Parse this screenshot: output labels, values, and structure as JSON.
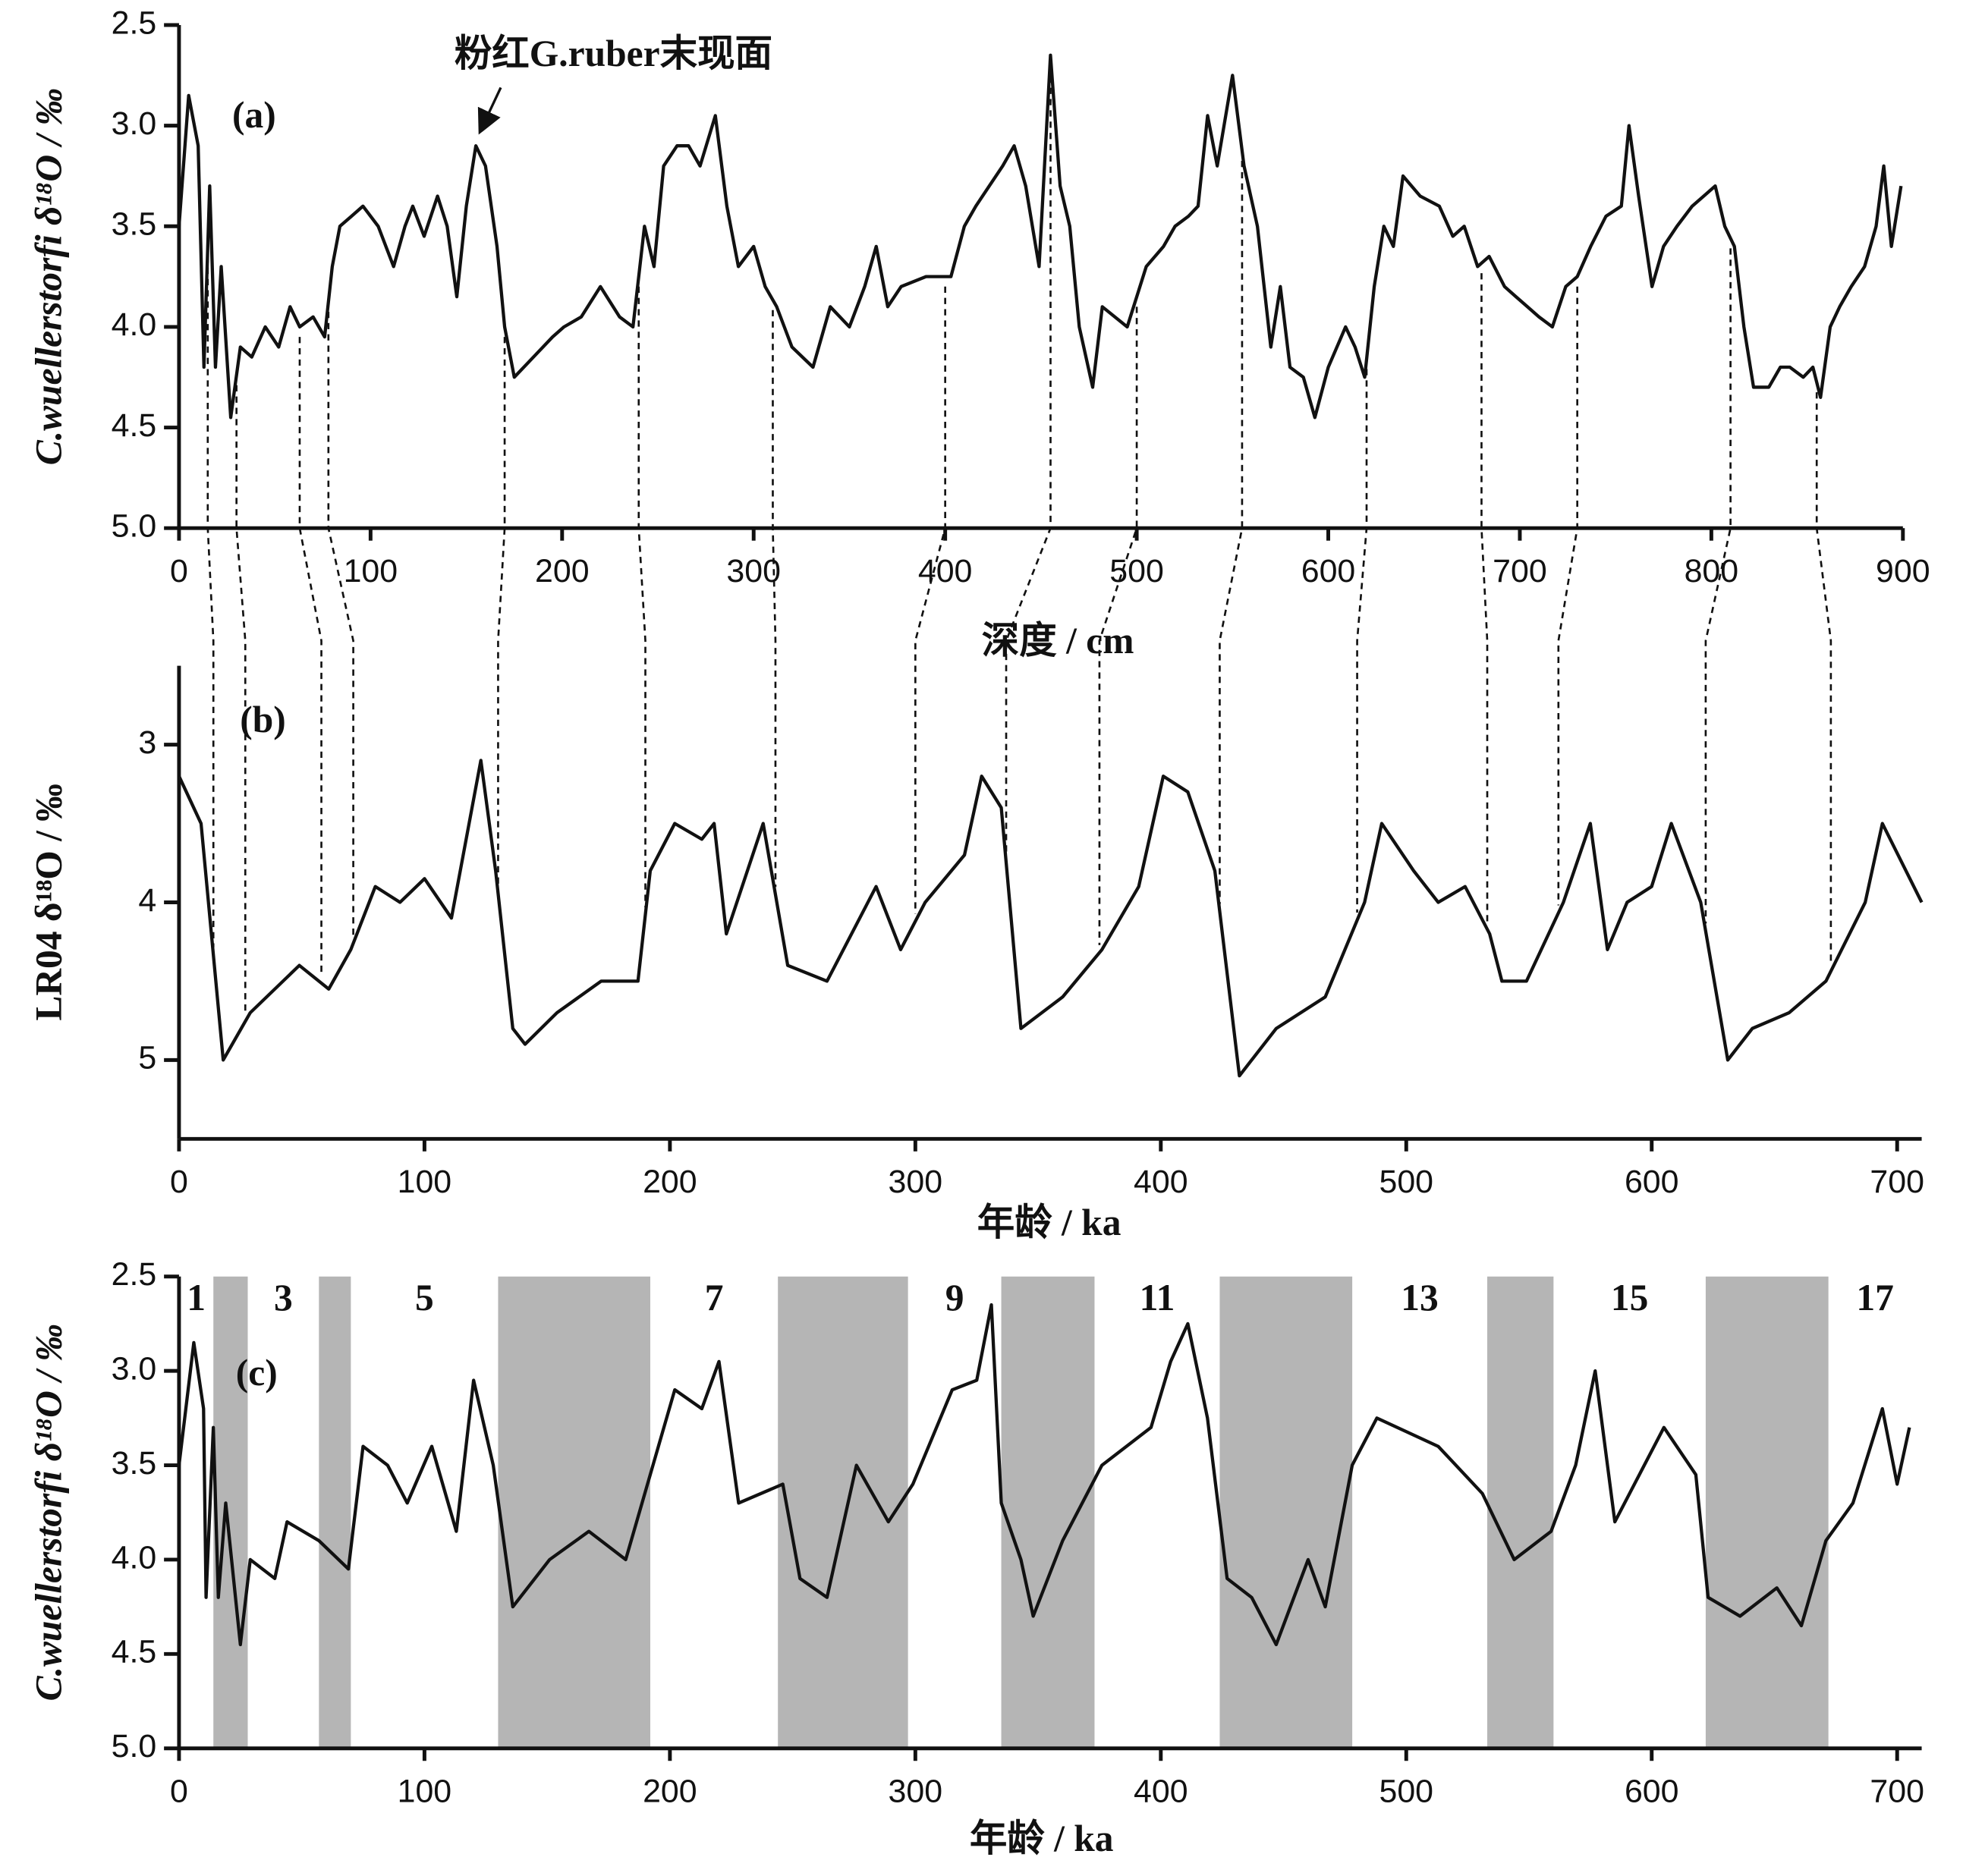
{
  "chart_data": [
    {
      "type": "line",
      "panel_label": "(a)",
      "annotation": "粉红G.ruber末现面",
      "x_label": "深度 / cm",
      "y_label": "C.wuellerstorfi δ¹⁸O / ‰",
      "y_inverted": true,
      "color": "#111111",
      "xlim": [
        0,
        900
      ],
      "xticks": [
        0,
        100,
        200,
        300,
        400,
        500,
        600,
        700,
        800,
        900
      ],
      "ylim": [
        2.5,
        5.0
      ],
      "yticks": [
        2.5,
        {
          "value": 3,
          "label": "3.0"
        },
        3.5,
        {
          "value": 4,
          "label": "4.0"
        },
        4.5,
        {
          "value": 5,
          "label": "5.0"
        }
      ],
      "x": [
        0,
        5,
        10,
        13,
        16,
        19,
        22,
        27,
        32,
        38,
        45,
        52,
        58,
        63,
        70,
        76,
        80,
        84,
        90,
        96,
        104,
        112,
        118,
        122,
        128,
        135,
        140,
        145,
        150,
        155,
        160,
        166,
        170,
        175,
        185,
        195,
        201,
        210,
        220,
        230,
        237,
        243,
        248,
        253,
        260,
        266,
        272,
        280,
        286,
        292,
        300,
        306,
        312,
        320,
        331,
        340,
        350,
        358,
        364,
        370,
        377,
        390,
        403,
        410,
        416,
        423,
        430,
        436,
        442,
        449,
        455,
        460,
        465,
        470,
        477,
        482,
        495,
        505,
        514,
        520,
        527,
        532,
        537,
        542,
        550,
        556,
        563,
        570,
        575,
        580,
        587,
        593,
        600,
        609,
        614,
        619,
        624,
        629,
        634,
        639,
        648,
        658,
        665,
        671,
        678,
        684,
        692,
        698,
        704,
        710,
        717,
        724,
        730,
        737,
        745,
        753,
        757,
        762,
        769,
        775,
        782,
        790,
        796,
        802,
        807,
        812,
        817,
        822,
        830,
        836,
        841,
        848,
        853,
        857,
        862,
        867,
        873,
        880,
        886,
        890,
        894,
        899
      ],
      "values": [
        3.5,
        2.85,
        3.1,
        4.2,
        3.3,
        4.2,
        3.7,
        4.45,
        4.1,
        4.15,
        4.0,
        4.1,
        3.9,
        4.0,
        3.95,
        4.05,
        3.7,
        3.5,
        3.45,
        3.4,
        3.5,
        3.7,
        3.5,
        3.4,
        3.55,
        3.35,
        3.5,
        3.85,
        3.4,
        3.1,
        3.2,
        3.6,
        4.0,
        4.25,
        4.15,
        4.05,
        4.0,
        3.95,
        3.8,
        3.95,
        4.0,
        3.5,
        3.7,
        3.2,
        3.1,
        3.1,
        3.2,
        2.95,
        3.4,
        3.7,
        3.6,
        3.8,
        3.9,
        4.1,
        4.2,
        3.9,
        4.0,
        3.8,
        3.6,
        3.9,
        3.8,
        3.75,
        3.75,
        3.5,
        3.4,
        3.3,
        3.2,
        3.1,
        3.3,
        3.7,
        2.65,
        3.3,
        3.5,
        4.0,
        4.3,
        3.9,
        4.0,
        3.7,
        3.6,
        3.5,
        3.45,
        3.4,
        2.95,
        3.2,
        2.75,
        3.2,
        3.5,
        4.1,
        3.8,
        4.2,
        4.25,
        4.45,
        4.2,
        4.0,
        4.1,
        4.25,
        3.8,
        3.5,
        3.6,
        3.25,
        3.35,
        3.4,
        3.55,
        3.5,
        3.7,
        3.65,
        3.8,
        3.85,
        3.9,
        3.95,
        4.0,
        3.8,
        3.75,
        3.6,
        3.45,
        3.4,
        3.0,
        3.35,
        3.8,
        3.6,
        3.5,
        3.4,
        3.35,
        3.3,
        3.5,
        3.6,
        4.0,
        4.3,
        4.3,
        4.2,
        4.2,
        4.25,
        4.2,
        4.35,
        4.0,
        3.9,
        3.8,
        3.7,
        3.5,
        3.2,
        3.6,
        3.3
      ]
    },
    {
      "type": "line",
      "panel_label": "(b)",
      "x_label": "年龄 / ka",
      "y_label": "LR04 δ¹⁸O / ‰",
      "y_inverted": true,
      "color": "#111111",
      "xlim": [
        0,
        710
      ],
      "xticks": [
        0,
        100,
        200,
        300,
        400,
        500,
        600,
        700
      ],
      "ylim": [
        2.5,
        5.5
      ],
      "yticks": [
        3,
        4,
        5
      ],
      "x": [
        0,
        9,
        18,
        29,
        49,
        61,
        70,
        80,
        90,
        100,
        111,
        123,
        129,
        136,
        141,
        154,
        172,
        187,
        192,
        202,
        213,
        218,
        223,
        238,
        248,
        264,
        284,
        294,
        304,
        320,
        327,
        335,
        343,
        360,
        376,
        391,
        401,
        411,
        422,
        432,
        447,
        467,
        483,
        490,
        503,
        513,
        524,
        534,
        539,
        549,
        564,
        575,
        582,
        590,
        600,
        608,
        620,
        631,
        641,
        656,
        671,
        687,
        694,
        710
      ],
      "values": [
        3.2,
        3.5,
        5.0,
        4.7,
        4.4,
        4.55,
        4.3,
        3.9,
        4.0,
        3.85,
        4.1,
        3.1,
        3.8,
        4.8,
        4.9,
        4.7,
        4.5,
        4.5,
        3.8,
        3.5,
        3.6,
        3.5,
        4.2,
        3.5,
        4.4,
        4.5,
        3.9,
        4.3,
        4.0,
        3.7,
        3.2,
        3.4,
        4.8,
        4.6,
        4.3,
        3.9,
        3.2,
        3.3,
        3.8,
        5.1,
        4.8,
        4.6,
        4.0,
        3.5,
        3.8,
        4.0,
        3.9,
        4.2,
        4.5,
        4.5,
        4.0,
        3.5,
        4.3,
        4.0,
        3.9,
        3.5,
        4.0,
        5.0,
        4.8,
        4.7,
        4.5,
        4.0,
        3.5,
        4.0
      ]
    },
    {
      "type": "line",
      "panel_label": "(c)",
      "x_label": "年龄 / ka",
      "y_label": "C.wuellerstorfi δ¹⁸O / ‰",
      "y_inverted": true,
      "color": "#111111",
      "span_color": "#b5b5b5",
      "xlim": [
        0,
        710
      ],
      "xticks": [
        0,
        100,
        200,
        300,
        400,
        500,
        600,
        700
      ],
      "ylim": [
        2.5,
        5.0
      ],
      "yticks": [
        2.5,
        {
          "value": 3,
          "label": "3.0"
        },
        3.5,
        {
          "value": 4,
          "label": "4.0"
        },
        4.5,
        {
          "value": 5,
          "label": "5.0"
        }
      ],
      "shaded_spans": [
        [
          14,
          28
        ],
        [
          57,
          70
        ],
        [
          130,
          192
        ],
        [
          244,
          297
        ],
        [
          335,
          373
        ],
        [
          424,
          478
        ],
        [
          533,
          560
        ],
        [
          622,
          672
        ]
      ],
      "stage_labels": [
        "1",
        "3",
        "5",
        "7",
        "9",
        "11",
        "13",
        "15",
        "17"
      ],
      "x": [
        0,
        6,
        10,
        11,
        14,
        16,
        19,
        25,
        29,
        39,
        44,
        57,
        69,
        75,
        85,
        93,
        103,
        113,
        120,
        128,
        136,
        151,
        167,
        182,
        192,
        202,
        213,
        220,
        228,
        246,
        253,
        264,
        276,
        289,
        299,
        315,
        325,
        331,
        335,
        343,
        348,
        360,
        376,
        396,
        404,
        411,
        419,
        427,
        437,
        447,
        460,
        467,
        478,
        488,
        513,
        531,
        544,
        559,
        569,
        577,
        585,
        605,
        618,
        623,
        636,
        651,
        661,
        671,
        682,
        694,
        700,
        705
      ],
      "values": [
        3.5,
        2.85,
        3.2,
        4.2,
        3.3,
        4.2,
        3.7,
        4.45,
        4.0,
        4.1,
        3.8,
        3.9,
        4.05,
        3.4,
        3.5,
        3.7,
        3.4,
        3.85,
        3.05,
        3.5,
        4.25,
        4.0,
        3.85,
        4.0,
        3.55,
        3.1,
        3.2,
        2.95,
        3.7,
        3.6,
        4.1,
        4.2,
        3.5,
        3.8,
        3.6,
        3.1,
        3.05,
        2.65,
        3.7,
        4.0,
        4.3,
        3.9,
        3.5,
        3.3,
        2.95,
        2.75,
        3.25,
        4.1,
        4.2,
        4.45,
        4.0,
        4.25,
        3.5,
        3.25,
        3.4,
        3.65,
        4.0,
        3.85,
        3.5,
        3.0,
        3.8,
        3.3,
        3.55,
        4.2,
        4.3,
        4.15,
        4.35,
        3.9,
        3.7,
        3.2,
        3.6,
        3.3
      ]
    }
  ],
  "tie_lines": {
    "depth": [
      15,
      30,
      63,
      78,
      170,
      240,
      310,
      400,
      455,
      500,
      555,
      620,
      680,
      730,
      810,
      855
    ],
    "age": [
      14,
      27,
      58,
      71,
      130,
      190,
      243,
      300,
      337,
      375,
      424,
      480,
      533,
      562,
      622,
      673
    ]
  }
}
